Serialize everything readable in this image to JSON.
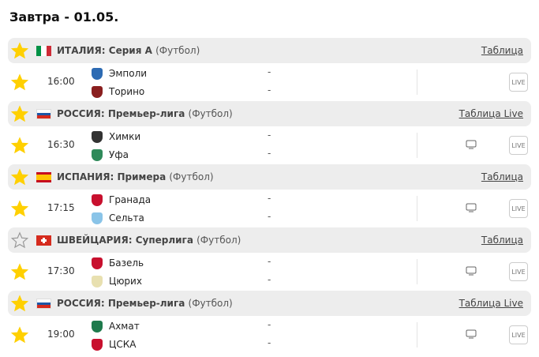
{
  "title": "Завтра - 01.05.",
  "colors": {
    "star": "#ffd000",
    "star_empty": "#999999",
    "league_bg": "#ededed"
  },
  "sections": [
    {
      "league": {
        "country": "ИТАЛИЯ:",
        "name": "Серия А",
        "sport": "(Футбол)",
        "link": "Таблица",
        "flag": "it",
        "favorite": true
      },
      "match": {
        "time": "16:00",
        "home": "Эмполи",
        "away": "Торино",
        "home_score": "-",
        "away_score": "-",
        "tv": false,
        "live": "LIVE",
        "favorite": true,
        "home_logo": "#2d6bb3",
        "away_logo": "#8a1f1f"
      }
    },
    {
      "league": {
        "country": "РОССИЯ:",
        "name": "Премьер-лига",
        "sport": "(Футбол)",
        "link": "Таблица Live",
        "flag": "ru",
        "favorite": true
      },
      "match": {
        "time": "16:30",
        "home": "Химки",
        "away": "Уфа",
        "home_score": "-",
        "away_score": "-",
        "tv": true,
        "live": "LIVE",
        "favorite": true,
        "home_logo": "#333333",
        "away_logo": "#2f8a5a"
      }
    },
    {
      "league": {
        "country": "ИСПАНИЯ:",
        "name": "Примера",
        "sport": "(Футбол)",
        "link": "Таблица",
        "flag": "es",
        "favorite": true
      },
      "match": {
        "time": "17:15",
        "home": "Гранада",
        "away": "Сельта",
        "home_score": "-",
        "away_score": "-",
        "tv": true,
        "live": "LIVE",
        "favorite": true,
        "home_logo": "#c8102e",
        "away_logo": "#8ac4e8"
      }
    },
    {
      "league": {
        "country": "ШВЕЙЦАРИЯ:",
        "name": "Суперлига",
        "sport": "(Футбол)",
        "link": "Таблица",
        "flag": "ch",
        "favorite": false
      },
      "match": {
        "time": "17:30",
        "home": "Базель",
        "away": "Цюрих",
        "home_score": "-",
        "away_score": "-",
        "tv": true,
        "live": "LIVE",
        "favorite": true,
        "home_logo": "#c8102e",
        "away_logo": "#e8e0b0"
      }
    },
    {
      "league": {
        "country": "РОССИЯ:",
        "name": "Премьер-лига",
        "sport": "(Футбол)",
        "link": "Таблица Live",
        "flag": "ru",
        "favorite": true
      },
      "match": {
        "time": "19:00",
        "home": "Ахмат",
        "away": "ЦСКА",
        "home_score": "-",
        "away_score": "-",
        "tv": true,
        "live": "LIVE",
        "favorite": true,
        "home_logo": "#1e7a4c",
        "away_logo": "#c8102e"
      }
    }
  ]
}
